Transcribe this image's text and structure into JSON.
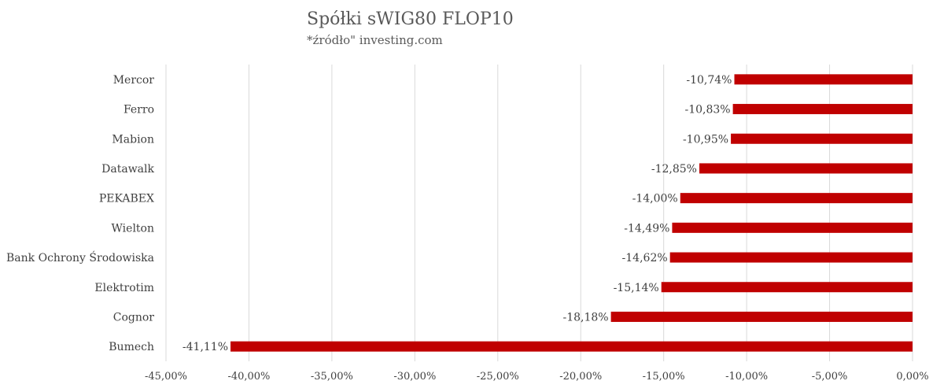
{
  "chart_data": {
    "type": "bar",
    "orientation": "horizontal",
    "title": "Spółki sWIG80 FLOP10",
    "subtitle": "*źródło\" investing.com",
    "categories": [
      "Mercor",
      "Ferro",
      "Mabion",
      "Datawalk",
      "PEKABEX",
      "Wielton",
      "Bank Ochrony Środowiska",
      "Elektrotim",
      "Cognor",
      "Bumech"
    ],
    "values": [
      -10.74,
      -10.83,
      -10.95,
      -12.85,
      -14.0,
      -14.49,
      -14.62,
      -15.14,
      -18.18,
      -41.11
    ],
    "data_labels": [
      "-10,74%",
      "-10,83%",
      "-10,95%",
      "-12,85%",
      "-14,00%",
      "-14,49%",
      "-14,62%",
      "-15,14%",
      "-18,18%",
      "-41,11%"
    ],
    "x_ticks": [
      -45,
      -40,
      -35,
      -30,
      -25,
      -20,
      -15,
      -10,
      -5,
      0
    ],
    "x_tick_labels": [
      "-45,00%",
      "-40,00%",
      "-35,00%",
      "-30,00%",
      "-25,00%",
      "-20,00%",
      "-15,00%",
      "-10,00%",
      "-5,00%",
      "0,00%"
    ],
    "xlim": [
      -45,
      0
    ],
    "grid": true,
    "bar_color": "#C00000",
    "grid_color": "#D9D9D9"
  }
}
